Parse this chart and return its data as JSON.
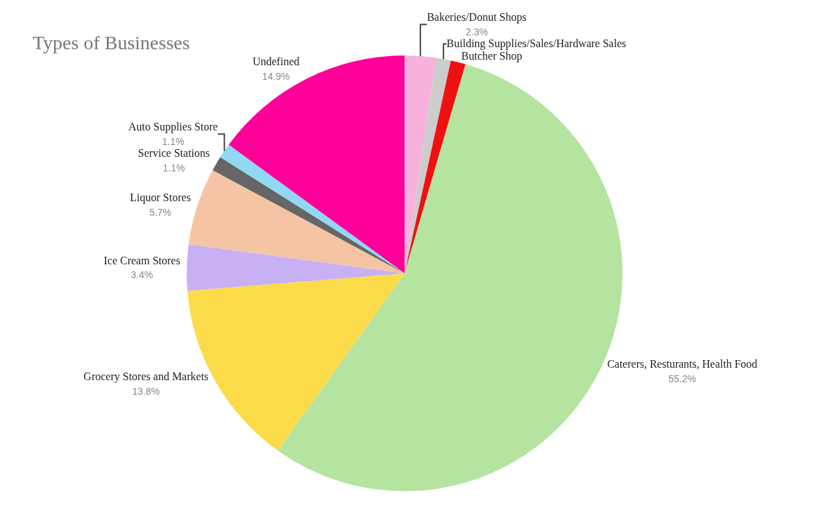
{
  "chart_data": {
    "type": "pie",
    "title": "Types of Businesses",
    "categories": [
      "Bakeries/Donut Shops",
      "Building Supplies/Sales/Hardware Sales",
      "Butcher Shop",
      "Caterers, Resturants, Health Food",
      "Grocery Stores and Markets",
      "Ice Cream Stores",
      "Liquor Stores",
      "Service Stations",
      "Auto Supplies Store",
      "Undefined"
    ],
    "values": [
      2.3,
      1.1,
      1.1,
      55.2,
      13.8,
      3.4,
      5.7,
      1.1,
      1.1,
      14.9
    ],
    "value_labels": [
      "2.3%",
      null,
      null,
      "55.2%",
      "13.8%",
      "3.4%",
      "5.7%",
      "1.1%",
      "1.1%",
      "14.9%"
    ],
    "colors": [
      "#f8b0dc",
      "#cccccc",
      "#ee1111",
      "#b5e3a0",
      "#fcdb4a",
      "#c8b0f4",
      "#f4c4a4",
      "#666666",
      "#90d8f4",
      "#ff0099"
    ],
    "legend": false
  }
}
